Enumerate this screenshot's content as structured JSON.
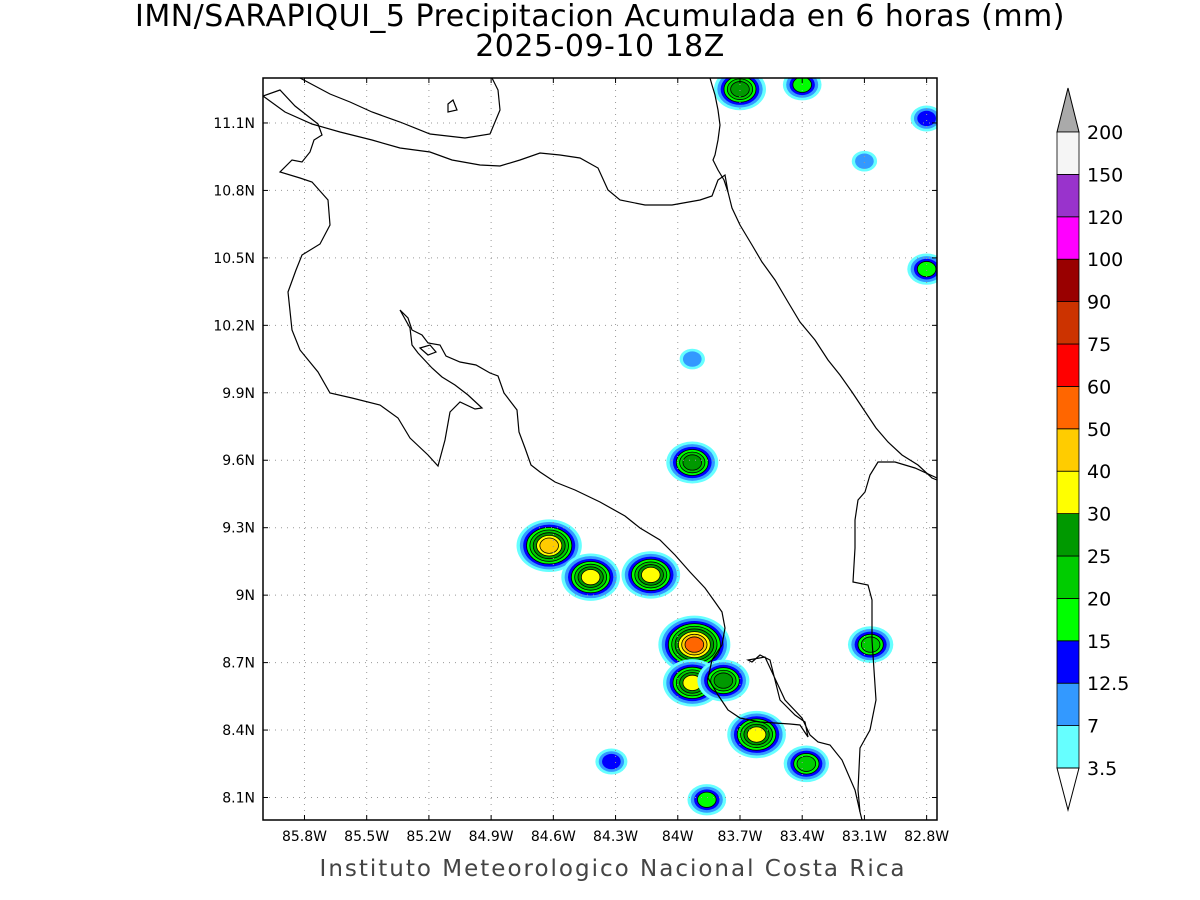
{
  "title": {
    "line1": "IMN/SARAPIQUI_5 Precipitacion Acumulada en 6 horas (mm)",
    "line2": "2025-09-10 18Z"
  },
  "footer": "Instituto Meteorologico Nacional Costa Rica",
  "map": {
    "lon_range": [
      -86.0,
      -82.75
    ],
    "lat_range": [
      8.0,
      11.3
    ],
    "lon_ticks": [
      {
        "value": -85.8,
        "label": "85.8W"
      },
      {
        "value": -85.5,
        "label": "85.5W"
      },
      {
        "value": -85.2,
        "label": "85.2W"
      },
      {
        "value": -84.9,
        "label": "84.9W"
      },
      {
        "value": -84.6,
        "label": "84.6W"
      },
      {
        "value": -84.3,
        "label": "84.3W"
      },
      {
        "value": -84.0,
        "label": "84W"
      },
      {
        "value": -83.7,
        "label": "83.7W"
      },
      {
        "value": -83.4,
        "label": "83.4W"
      },
      {
        "value": -83.1,
        "label": "83.1W"
      },
      {
        "value": -82.8,
        "label": "82.8W"
      }
    ],
    "lat_ticks": [
      {
        "value": 8.1,
        "label": "8.1N"
      },
      {
        "value": 8.4,
        "label": "8.4N"
      },
      {
        "value": 8.7,
        "label": "8.7N"
      },
      {
        "value": 9.0,
        "label": "9N"
      },
      {
        "value": 9.3,
        "label": "9.3N"
      },
      {
        "value": 9.6,
        "label": "9.6N"
      },
      {
        "value": 9.9,
        "label": "9.9N"
      },
      {
        "value": 10.2,
        "label": "10.2N"
      },
      {
        "value": 10.5,
        "label": "10.5N"
      },
      {
        "value": 10.8,
        "label": "10.8N"
      },
      {
        "value": 11.1,
        "label": "11.1N"
      }
    ]
  },
  "legend": {
    "labels": [
      "3.5",
      "7",
      "12.5",
      "15",
      "20",
      "25",
      "30",
      "40",
      "50",
      "60",
      "75",
      "90",
      "100",
      "120",
      "150",
      "200"
    ],
    "colors": [
      "#66ffff",
      "#3399ff",
      "#0000ff",
      "#00ff00",
      "#00cc00",
      "#009900",
      "#ffff00",
      "#ffcc00",
      "#ff6600",
      "#ff0000",
      "#cc3300",
      "#990000",
      "#ff00ff",
      "#9933cc",
      "#f5f5f5"
    ],
    "under_color": "#ffffff",
    "over_color": "#aaaaaa"
  },
  "precip_cells": [
    {
      "lon": -84.62,
      "lat": 9.22,
      "peak": 40
    },
    {
      "lon": -84.42,
      "lat": 9.08,
      "peak": 30
    },
    {
      "lon": -84.13,
      "lat": 9.09,
      "peak": 30
    },
    {
      "lon": -83.92,
      "lat": 8.78,
      "peak": 50
    },
    {
      "lon": -83.93,
      "lat": 8.61,
      "peak": 30
    },
    {
      "lon": -83.78,
      "lat": 8.62,
      "peak": 25
    },
    {
      "lon": -83.62,
      "lat": 8.38,
      "peak": 30
    },
    {
      "lon": -83.93,
      "lat": 9.59,
      "peak": 25
    },
    {
      "lon": -83.38,
      "lat": 8.25,
      "peak": 20
    },
    {
      "lon": -83.07,
      "lat": 8.78,
      "peak": 20
    },
    {
      "lon": -82.8,
      "lat": 10.45,
      "peak": 15
    },
    {
      "lon": -83.7,
      "lat": 11.25,
      "peak": 25
    },
    {
      "lon": -83.4,
      "lat": 11.27,
      "peak": 15
    },
    {
      "lon": -82.8,
      "lat": 11.12,
      "peak": 12.5
    },
    {
      "lon": -84.32,
      "lat": 8.26,
      "peak": 12.5
    },
    {
      "lon": -83.86,
      "lat": 8.09,
      "peak": 15
    },
    {
      "lon": -83.93,
      "lat": 10.05,
      "peak": 7
    },
    {
      "lon": -83.1,
      "lat": 10.93,
      "peak": 7
    }
  ]
}
